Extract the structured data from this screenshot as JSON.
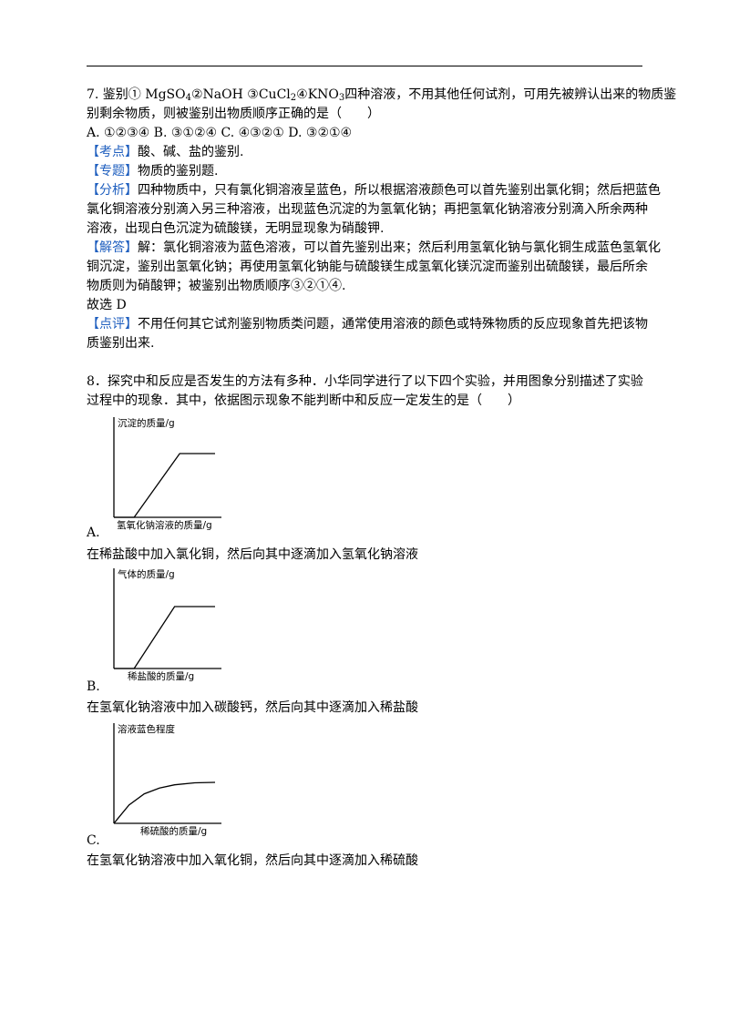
{
  "q7": {
    "line1_pre": "7. 鉴别① MgSO",
    "line1_s1": "4",
    "line1_m1": "②NaOH ③CuCl",
    "line1_s2": "2",
    "line1_m2": "④KNO",
    "line1_s3": "3",
    "line1_post": "四种溶液，不用其他任何试剂，可用先被辨认出来的物质鉴",
    "line2": "别剩余物质，则被鉴别出物质顺序正确的是（　　）",
    "options": "A. ①②③④ B. ③①②④ C. ④③②① D. ③②①④",
    "kaodian_tag": "【考点】",
    "kaodian": "酸、碱、盐的鉴别.",
    "zhuanti_tag": "【专题】",
    "zhuanti": "物质的鉴别题.",
    "fenxi_tag": "【分析】",
    "fenxi1": "四种物质中，只有氯化铜溶液呈蓝色，所以根据溶液颜色可以首先鉴别出氯化铜；然后把蓝色",
    "fenxi2": "氯化铜溶液分别滴入另三种溶液，出现蓝色沉淀的为氢氧化钠；再把氢氧化钠溶液分别滴入所余两种",
    "fenxi3": "溶液，出现白色沉淀为硫酸镁，无明显现象为硝酸钾.",
    "jieda_tag": "【解答】",
    "jieda1": "解：氯化铜溶液为蓝色溶液，可以首先鉴别出来；然后利用氢氧化钠与氯化铜生成蓝色氢氧化",
    "jieda2": "铜沉淀，鉴别出氢氧化钠；再使用氢氧化钠能与硫酸镁生成氢氧化镁沉淀而鉴别出硫酸镁，最后所余",
    "jieda3": "物质则为硝酸钾；被鉴别出物质顺序③②①④.",
    "answer": "故选 D",
    "dianping_tag": "【点评】",
    "dianping1": "不用任何其它试剂鉴别物质类问题，通常使用溶液的颜色或特殊物质的反应现象首先把该物",
    "dianping2": "质鉴别出来."
  },
  "q8": {
    "line1": "8．探究中和反应是否发生的方法有多种．小华同学进行了以下四个实验，并用图象分别描述了实验",
    "line2": "过程中的现象．其中，依据图示现象不能判断中和反应一定发生的是（　　）",
    "optA": {
      "label": "A.",
      "desc": "在稀盐酸中加入氯化铜，然后向其中逐滴加入氢氧化钠溶液",
      "chart_data": {
        "type": "line",
        "ylabel": "沉淀的质量/g",
        "xlabel": "氢氧化钠溶液的质量/g",
        "x": [
          0,
          0.2,
          0.65,
          1.0
        ],
        "values": [
          0,
          0,
          1,
          1
        ]
      }
    },
    "optB": {
      "label": "B.",
      "desc": "在氢氧化钠溶液中加入碳酸钙，然后向其中逐滴加入稀盐酸",
      "chart_data": {
        "type": "line",
        "ylabel": "气体的质量/g",
        "xlabel": "稀盐酸的质量/g",
        "x": [
          0,
          0.2,
          0.6,
          1.0
        ],
        "values": [
          0,
          0,
          1,
          1
        ]
      }
    },
    "optC": {
      "label": "C.",
      "desc": "在氢氧化钠溶液中加入氧化铜，然后向其中逐滴加入稀硫酸",
      "chart_data": {
        "type": "line",
        "ylabel": "溶液蓝色程度",
        "xlabel": "稀硫酸的质量/g",
        "x": [
          0,
          0.15,
          0.3,
          0.45,
          0.6,
          0.8,
          1.0
        ],
        "values": [
          0,
          0.45,
          0.72,
          0.86,
          0.94,
          0.99,
          1.0
        ]
      }
    }
  }
}
